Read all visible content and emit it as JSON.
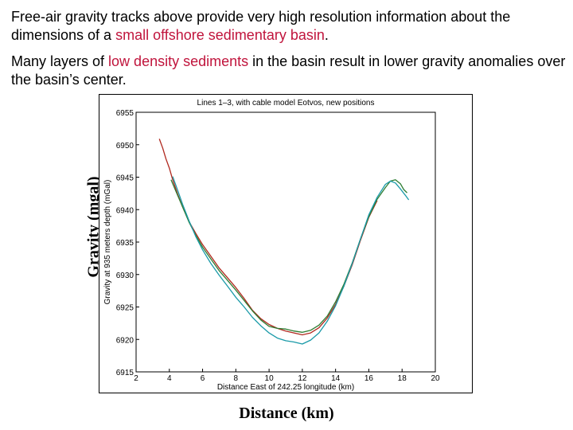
{
  "text": {
    "p1_a": "Free-air gravity tracks above provide very high resolution information about the dimensions of a ",
    "p1_hl": "small offshore sedimentary basin",
    "p1_b": ".",
    "p2_a": "Many layers of ",
    "p2_hl": "low density sediments",
    "p2_b": " in the basin result in lower gravity anomalies over the basin’s center.",
    "outer_ylabel": "Gravity (mgal)",
    "outer_xlabel": "Distance (km)"
  },
  "colors": {
    "highlight": "#c0143c",
    "red_track": "#b0281e",
    "green_track": "#2e7d32",
    "cyan_track": "#1a9aa8"
  },
  "chart_data": {
    "type": "line",
    "title": "Lines 1–3, with cable model Eotvos, new positions",
    "xlabel": "Distance East of 242.25 longitude (km)",
    "ylabel": "Gravity at 935 meters depth (mGal)",
    "xlim": [
      2,
      20
    ],
    "ylim": [
      6915,
      6955
    ],
    "xticks": [
      2,
      4,
      6,
      8,
      10,
      12,
      14,
      16,
      18,
      20
    ],
    "yticks": [
      6915,
      6920,
      6925,
      6930,
      6935,
      6940,
      6945,
      6950,
      6955
    ],
    "grid": false,
    "series": [
      {
        "color": "#b0281e",
        "points": [
          [
            3.4,
            6950.9
          ],
          [
            3.6,
            6949.5
          ],
          [
            3.8,
            6947.8
          ],
          [
            4.0,
            6946.4
          ],
          [
            4.2,
            6944.6
          ],
          [
            4.5,
            6942.4
          ],
          [
            4.8,
            6940.4
          ],
          [
            5.2,
            6938.1
          ],
          [
            5.6,
            6936.3
          ],
          [
            6.0,
            6934.6
          ],
          [
            6.5,
            6932.8
          ],
          [
            7.0,
            6931.0
          ],
          [
            7.5,
            6929.5
          ],
          [
            8.0,
            6928.0
          ],
          [
            8.5,
            6926.3
          ],
          [
            9.0,
            6924.5
          ],
          [
            9.5,
            6923.2
          ],
          [
            10.0,
            6922.3
          ],
          [
            10.5,
            6921.7
          ],
          [
            11.0,
            6921.3
          ],
          [
            11.5,
            6921.0
          ],
          [
            12.0,
            6920.7
          ],
          [
            12.5,
            6921.0
          ],
          [
            13.0,
            6921.8
          ],
          [
            13.5,
            6923.3
          ],
          [
            14.0,
            6925.4
          ],
          [
            14.5,
            6928.2
          ],
          [
            15.0,
            6931.5
          ],
          [
            15.5,
            6935.3
          ],
          [
            16.0,
            6938.8
          ],
          [
            16.5,
            6941.4
          ]
        ]
      },
      {
        "color": "#2e7d32",
        "points": [
          [
            4.1,
            6944.6
          ],
          [
            4.5,
            6942.2
          ],
          [
            4.8,
            6940.4
          ],
          [
            5.2,
            6938.0
          ],
          [
            5.6,
            6936.0
          ],
          [
            6.0,
            6934.2
          ],
          [
            6.5,
            6932.4
          ],
          [
            7.0,
            6930.6
          ],
          [
            7.5,
            6929.1
          ],
          [
            8.0,
            6927.6
          ],
          [
            8.5,
            6926.0
          ],
          [
            9.0,
            6924.4
          ],
          [
            9.5,
            6923.0
          ],
          [
            10.0,
            6922.0
          ],
          [
            10.5,
            6921.7
          ],
          [
            11.0,
            6921.6
          ],
          [
            11.5,
            6921.3
          ],
          [
            12.0,
            6921.1
          ],
          [
            12.5,
            6921.4
          ],
          [
            13.0,
            6922.2
          ],
          [
            13.5,
            6923.6
          ],
          [
            14.0,
            6925.8
          ],
          [
            14.5,
            6928.5
          ],
          [
            15.0,
            6931.8
          ],
          [
            15.5,
            6935.5
          ],
          [
            16.0,
            6938.9
          ],
          [
            16.5,
            6941.6
          ],
          [
            17.0,
            6943.4
          ],
          [
            17.3,
            6944.4
          ],
          [
            17.6,
            6944.6
          ],
          [
            17.9,
            6944.0
          ],
          [
            18.1,
            6943.1
          ],
          [
            18.3,
            6942.6
          ]
        ]
      },
      {
        "color": "#1a9aa8",
        "points": [
          [
            4.2,
            6945.1
          ],
          [
            4.5,
            6943.0
          ],
          [
            4.8,
            6940.8
          ],
          [
            5.2,
            6938.2
          ],
          [
            5.6,
            6935.8
          ],
          [
            6.0,
            6933.8
          ],
          [
            6.5,
            6931.7
          ],
          [
            7.0,
            6929.9
          ],
          [
            7.5,
            6928.2
          ],
          [
            8.0,
            6926.5
          ],
          [
            8.5,
            6925.0
          ],
          [
            9.0,
            6923.4
          ],
          [
            9.5,
            6922.1
          ],
          [
            10.0,
            6921.0
          ],
          [
            10.5,
            6920.2
          ],
          [
            11.0,
            6919.8
          ],
          [
            11.5,
            6919.6
          ],
          [
            12.0,
            6919.3
          ],
          [
            12.5,
            6919.9
          ],
          [
            13.0,
            6921.0
          ],
          [
            13.5,
            6922.8
          ],
          [
            14.0,
            6925.2
          ],
          [
            14.5,
            6928.2
          ],
          [
            15.0,
            6931.7
          ],
          [
            15.5,
            6935.5
          ],
          [
            16.0,
            6939.2
          ],
          [
            16.5,
            6941.9
          ],
          [
            17.0,
            6943.9
          ],
          [
            17.3,
            6944.4
          ],
          [
            17.6,
            6944.1
          ],
          [
            17.9,
            6943.2
          ],
          [
            18.2,
            6942.2
          ],
          [
            18.4,
            6941.5
          ]
        ]
      }
    ]
  }
}
